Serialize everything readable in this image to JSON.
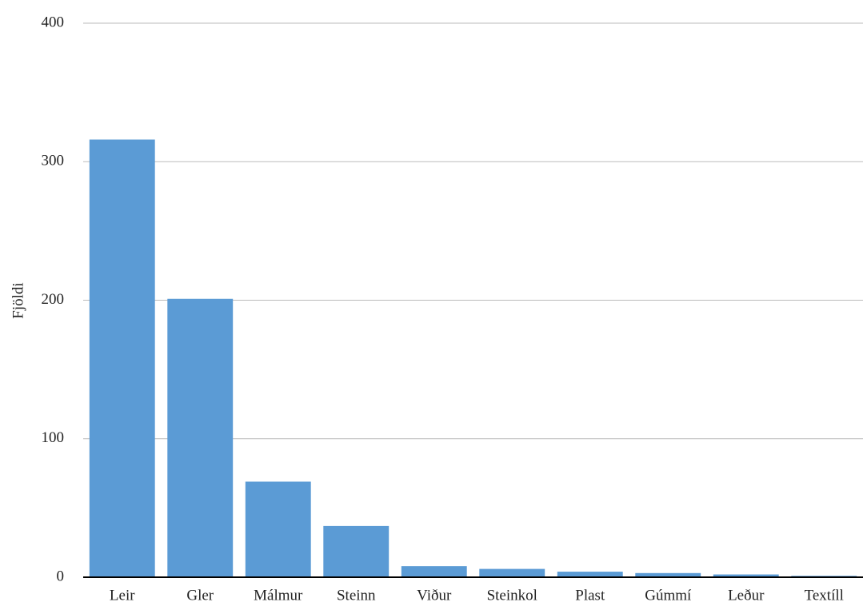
{
  "chart_data": {
    "type": "bar",
    "y_label": "Fjöldi",
    "categories": [
      "Leir",
      "Gler",
      "Málmur",
      "Steinn",
      "Viður",
      "Steinkol",
      "Plast",
      "Gúmmí",
      "Leður",
      "Textíll"
    ],
    "values": [
      316,
      201,
      69,
      37,
      8,
      6,
      4,
      3,
      2,
      1
    ],
    "color": "#5b9bd5",
    "ylim": [
      0,
      400
    ],
    "yticks": [
      0,
      100,
      200,
      300,
      400
    ],
    "grid": true
  }
}
